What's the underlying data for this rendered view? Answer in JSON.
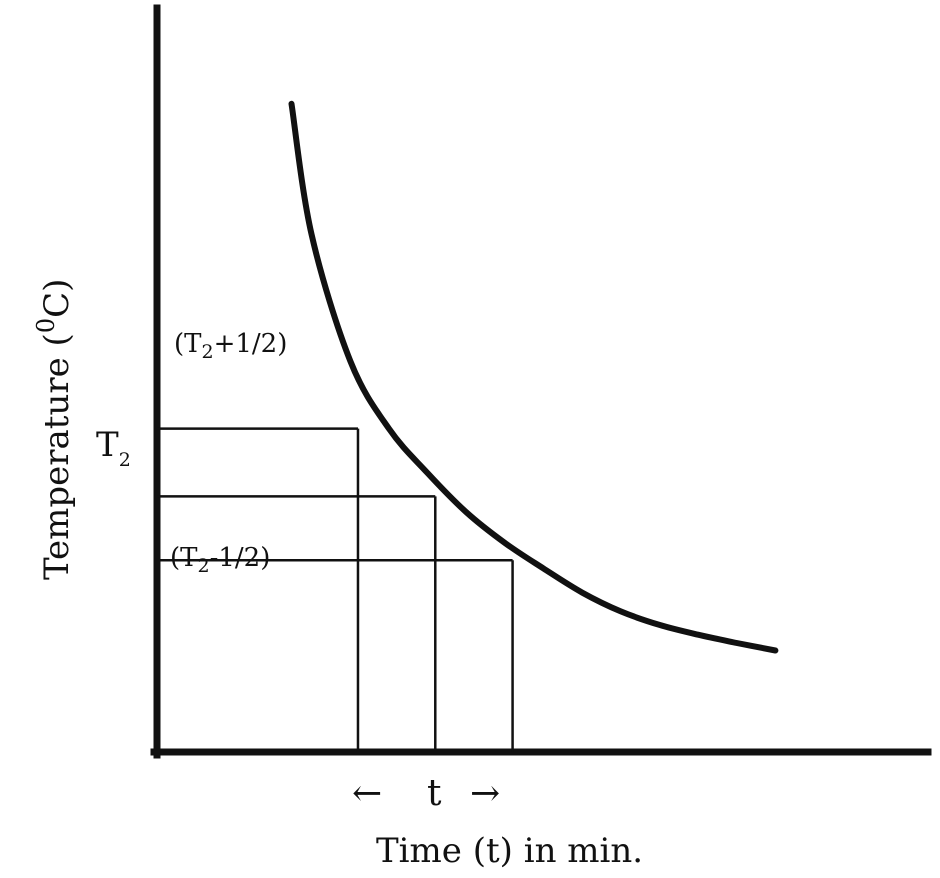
{
  "chart_data": {
    "type": "line",
    "title": "",
    "xlabel": "Time (t) in min.",
    "ylabel": "Temperature (°C)",
    "ylabel_parts": {
      "pre": "Temperature (",
      "sup": "0",
      "post": "C)"
    },
    "x_ticks": [],
    "y_ticks": [],
    "grid": false,
    "legend": "none",
    "xlim": [
      0,
      10
    ],
    "ylim": [
      0,
      10
    ],
    "series": [
      {
        "name": "cooling curve",
        "x": [
          1.74,
          2.0,
          2.5,
          3.0,
          3.5,
          4.0,
          4.5,
          5.0,
          5.5,
          6.0,
          6.5,
          7.0,
          7.5,
          8.0
        ],
        "y": [
          8.62,
          6.88,
          5.2,
          4.3,
          3.71,
          3.19,
          2.78,
          2.44,
          2.12,
          1.87,
          1.69,
          1.56,
          1.45,
          1.35
        ]
      }
    ],
    "reference_lines": {
      "horizontal": [
        {
          "id": "upper",
          "y": 4.3,
          "x_end": 2.6,
          "label": "(T2+1/2)",
          "label_parts": {
            "pre": "(T",
            "sub": "2",
            "post": "+1/2)"
          }
        },
        {
          "id": "mid",
          "y": 3.4,
          "x_end": 3.6,
          "label": "T2",
          "label_parts": {
            "pre": "T",
            "sub": "2",
            "post": ""
          }
        },
        {
          "id": "lower",
          "y": 2.55,
          "x_end": 4.6,
          "label": "(T2-1/2)",
          "label_parts": {
            "pre": "(T",
            "sub": "2",
            "post": "-1/2)"
          }
        }
      ],
      "vertical": [
        {
          "id": "v1",
          "x": 2.6,
          "y_end": 4.3
        },
        {
          "id": "v2",
          "x": 3.6,
          "y_end": 3.4
        },
        {
          "id": "v3",
          "x": 4.6,
          "y_end": 2.55
        }
      ]
    },
    "interval_annotation": {
      "label": "t",
      "from_x": 2.6,
      "to_x": 4.6,
      "arrow_left": "←",
      "arrow_right": "→"
    }
  }
}
